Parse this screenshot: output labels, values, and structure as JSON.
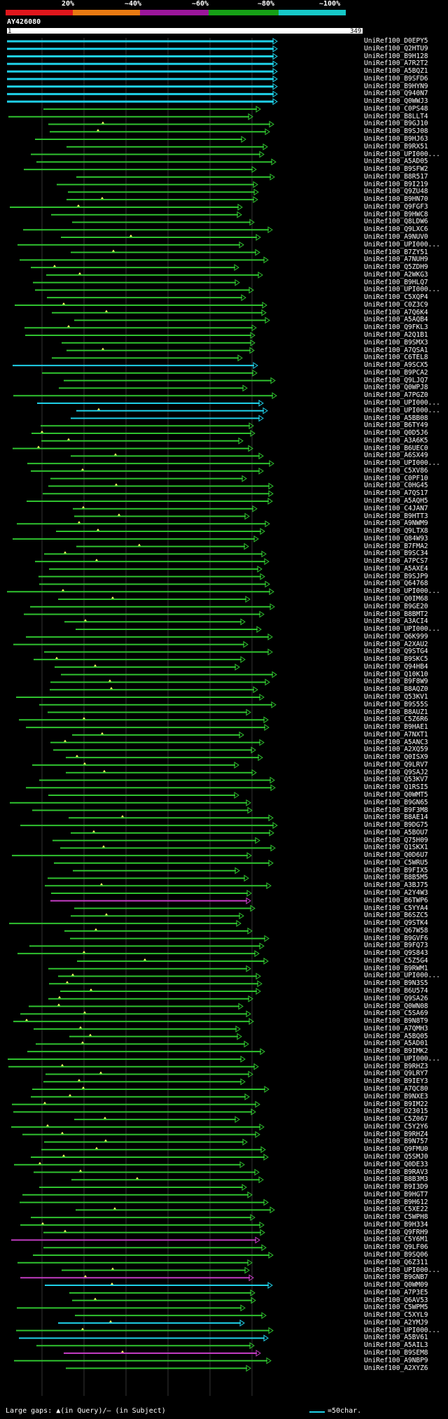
{
  "scale": {
    "labels": [
      "20%",
      "~40%",
      "~60%",
      "~80%",
      "~100%"
    ],
    "colors": [
      "#e0161c",
      "#e87a12",
      "#9b169b",
      "#16a016",
      "#16c8c8"
    ]
  },
  "query": {
    "id": "AY426080",
    "start": "1",
    "end": "349"
  },
  "footer": {
    "left": "Large gaps: ▲(in Query)/– (in Subject)",
    "right": "=50char."
  },
  "hits": [
    {
      "id": "UniRef100_D0EPY5",
      "color": "cyan"
    },
    {
      "id": "UniRef100_Q2HTU9",
      "color": "cyan"
    },
    {
      "id": "UniRef100_B9H128",
      "color": "cyan"
    },
    {
      "id": "UniRef100_A7R2T2",
      "color": "cyan"
    },
    {
      "id": "UniRef100_A5BQZ1",
      "color": "cyan"
    },
    {
      "id": "UniRef100_B9SFD6",
      "color": "cyan"
    },
    {
      "id": "UniRef100_B9HYN9",
      "color": "cyan"
    },
    {
      "id": "UniRef100_Q940N7",
      "color": "cyan"
    },
    {
      "id": "UniRef100_Q0WWJ3",
      "color": "cyan"
    },
    {
      "id": "UniRef100_C0PS48",
      "color": "green"
    },
    {
      "id": "UniRef100_B8LLT4",
      "color": "green"
    },
    {
      "id": "UniRef100_B9GJ10",
      "color": "green"
    },
    {
      "id": "UniRef100_B9SJ08",
      "color": "green"
    },
    {
      "id": "UniRef100_B9HJ63",
      "color": "green"
    },
    {
      "id": "UniRef100_B9RX51",
      "color": "green"
    },
    {
      "id": "UniRef100_UPI000...",
      "color": "green"
    },
    {
      "id": "UniRef100_A5AD05",
      "color": "green"
    },
    {
      "id": "UniRef100_B9SFW2",
      "color": "green"
    },
    {
      "id": "UniRef100_B8R517",
      "color": "green"
    },
    {
      "id": "UniRef100_B9I219",
      "color": "green"
    },
    {
      "id": "UniRef100_Q9ZU48",
      "color": "green"
    },
    {
      "id": "UniRef100_B9HN70",
      "color": "green"
    },
    {
      "id": "UniRef100_Q9FGF3",
      "color": "green"
    },
    {
      "id": "UniRef100_B9HWC8",
      "color": "green"
    },
    {
      "id": "UniRef100_Q8LDW6",
      "color": "green"
    },
    {
      "id": "UniRef100_Q9LXC6",
      "color": "green"
    },
    {
      "id": "UniRef100_A9NUV0",
      "color": "green"
    },
    {
      "id": "UniRef100_UPI000...",
      "color": "green"
    },
    {
      "id": "UniRef100_B7ZY51",
      "color": "green"
    },
    {
      "id": "UniRef100_A7NUH9",
      "color": "green"
    },
    {
      "id": "UniRef100_Q5ZDH9",
      "color": "green"
    },
    {
      "id": "UniRef100_A2WKG3",
      "color": "green"
    },
    {
      "id": "UniRef100_B9HLQ7",
      "color": "green"
    },
    {
      "id": "UniRef100_UPI000...",
      "color": "green"
    },
    {
      "id": "UniRef100_C5XQP4",
      "color": "green"
    },
    {
      "id": "UniRef100_C0Z3C9",
      "color": "green"
    },
    {
      "id": "UniRef100_A7Q6K4",
      "color": "green"
    },
    {
      "id": "UniRef100_A5AQB4",
      "color": "green"
    },
    {
      "id": "UniRef100_Q9FKL3",
      "color": "green"
    },
    {
      "id": "UniRef100_A2Q1B1",
      "color": "green"
    },
    {
      "id": "UniRef100_B9SMX3",
      "color": "green"
    },
    {
      "id": "UniRef100_A7QSA1",
      "color": "green"
    },
    {
      "id": "UniRef100_C6TEL8",
      "color": "green"
    },
    {
      "id": "UniRef100_A9SCX5",
      "color": "cyan"
    },
    {
      "id": "UniRef100_B9PCA2",
      "color": "green"
    },
    {
      "id": "UniRef100_Q9LJQ7",
      "color": "green"
    },
    {
      "id": "UniRef100_Q0WPJ8",
      "color": "green"
    },
    {
      "id": "UniRef100_A7PGZ0",
      "color": "green"
    },
    {
      "id": "UniRef100_UPI000...",
      "color": "cyan"
    },
    {
      "id": "UniRef100_UPI000...",
      "color": "cyan"
    },
    {
      "id": "UniRef100_A5BB08",
      "color": "cyan"
    },
    {
      "id": "UniRef100_B6TY49",
      "color": "green"
    },
    {
      "id": "UniRef100_Q0D5J6",
      "color": "green"
    },
    {
      "id": "UniRef100_A3A6K5",
      "color": "green"
    },
    {
      "id": "UniRef100_B6UEC0",
      "color": "green"
    },
    {
      "id": "UniRef100_A6SX49",
      "color": "green"
    },
    {
      "id": "UniRef100_UPI000...",
      "color": "green"
    },
    {
      "id": "UniRef100_C5XV86",
      "color": "green"
    },
    {
      "id": "UniRef100_C0PF10",
      "color": "green"
    },
    {
      "id": "UniRef100_C0HG45",
      "color": "green"
    },
    {
      "id": "UniRef100_A7QS17",
      "color": "green"
    },
    {
      "id": "UniRef100_A5AQH5",
      "color": "green"
    },
    {
      "id": "UniRef100_C4JAN7",
      "color": "green"
    },
    {
      "id": "UniRef100_B9HTT3",
      "color": "green"
    },
    {
      "id": "UniRef100_A9NWM9",
      "color": "green"
    },
    {
      "id": "UniRef100_Q9LTX8",
      "color": "green"
    },
    {
      "id": "UniRef100_Q84W93",
      "color": "green"
    },
    {
      "id": "UniRef100_B7FMA2",
      "color": "green"
    },
    {
      "id": "UniRef100_B9SC34",
      "color": "green"
    },
    {
      "id": "UniRef100_A7PCS7",
      "color": "green"
    },
    {
      "id": "UniRef100_A5AXE4",
      "color": "green"
    },
    {
      "id": "UniRef100_B9SJP9",
      "color": "green"
    },
    {
      "id": "UniRef100_Q64768",
      "color": "green"
    },
    {
      "id": "UniRef100_UPI000...",
      "color": "green"
    },
    {
      "id": "UniRef100_Q0IM68",
      "color": "green"
    },
    {
      "id": "UniRef100_B9GE20",
      "color": "green"
    },
    {
      "id": "UniRef100_B8BMT2",
      "color": "green"
    },
    {
      "id": "UniRef100_A3ACI4",
      "color": "green"
    },
    {
      "id": "UniRef100_UPI000...",
      "color": "green"
    },
    {
      "id": "UniRef100_Q6K999",
      "color": "green"
    },
    {
      "id": "UniRef100_A2XAU2",
      "color": "green"
    },
    {
      "id": "UniRef100_Q9STG4",
      "color": "green"
    },
    {
      "id": "UniRef100_B9SKC5",
      "color": "green"
    },
    {
      "id": "UniRef100_Q94HB4",
      "color": "green"
    },
    {
      "id": "UniRef100_Q10K10",
      "color": "green"
    },
    {
      "id": "UniRef100_B9F8W9",
      "color": "green"
    },
    {
      "id": "UniRef100_B8AQZ0",
      "color": "green"
    },
    {
      "id": "UniRef100_Q53KV1",
      "color": "green"
    },
    {
      "id": "UniRef100_B9S55S",
      "color": "green"
    },
    {
      "id": "UniRef100_B8AUZ1",
      "color": "green"
    },
    {
      "id": "UniRef100_C5Z6R6",
      "color": "green"
    },
    {
      "id": "UniRef100_B9HAE1",
      "color": "green"
    },
    {
      "id": "UniRef100_A7NXT1",
      "color": "green"
    },
    {
      "id": "UniRef100_A5ANC3",
      "color": "green"
    },
    {
      "id": "UniRef100_A2XQ59",
      "color": "green"
    },
    {
      "id": "UniRef100_Q0ISX9",
      "color": "green"
    },
    {
      "id": "UniRef100_Q9LRV7",
      "color": "green"
    },
    {
      "id": "UniRef100_Q9SAJ2",
      "color": "green"
    },
    {
      "id": "UniRef100_Q53KV7",
      "color": "green"
    },
    {
      "id": "UniRef100_Q1RSI5",
      "color": "green"
    },
    {
      "id": "UniRef100_Q0WMT5",
      "color": "green"
    },
    {
      "id": "UniRef100_B9GN65",
      "color": "green"
    },
    {
      "id": "UniRef100_B9F3M8",
      "color": "green"
    },
    {
      "id": "UniRef100_B8AE14",
      "color": "green"
    },
    {
      "id": "UniRef100_B9DG75",
      "color": "green"
    },
    {
      "id": "UniRef100_A5BOU7",
      "color": "green"
    },
    {
      "id": "UniRef100_Q75H09",
      "color": "green"
    },
    {
      "id": "UniRef100_Q1SKX1",
      "color": "green"
    },
    {
      "id": "UniRef100_Q0D6U7",
      "color": "green"
    },
    {
      "id": "UniRef100_C5WRU5",
      "color": "green"
    },
    {
      "id": "UniRef100_B9FIX5",
      "color": "green"
    },
    {
      "id": "UniRef100_B8B5M5",
      "color": "green"
    },
    {
      "id": "UniRef100_A3BJ75",
      "color": "green"
    },
    {
      "id": "UniRef100_A2Y4W3",
      "color": "green"
    },
    {
      "id": "UniRef100_B6TWP6",
      "color": "magenta"
    },
    {
      "id": "UniRef100_C5YYA4",
      "color": "green"
    },
    {
      "id": "UniRef100_B6SZC5",
      "color": "green"
    },
    {
      "id": "UniRef100_Q9STK4",
      "color": "green"
    },
    {
      "id": "UniRef100_Q67W58",
      "color": "green"
    },
    {
      "id": "UniRef100_B9GVF6",
      "color": "green"
    },
    {
      "id": "UniRef100_B9FQ73",
      "color": "green"
    },
    {
      "id": "UniRef100_Q9S843",
      "color": "green"
    },
    {
      "id": "UniRef100_C5Z5G4",
      "color": "green"
    },
    {
      "id": "UniRef100_B9RWM1",
      "color": "green"
    },
    {
      "id": "UniRef100_UPI000...",
      "color": "green"
    },
    {
      "id": "UniRef100_B9N3S5",
      "color": "green"
    },
    {
      "id": "UniRef100_B6U574",
      "color": "green"
    },
    {
      "id": "UniRef100_Q9SA26",
      "color": "green"
    },
    {
      "id": "UniRef100_Q0WN08",
      "color": "green"
    },
    {
      "id": "UniRef100_C5SA69",
      "color": "green"
    },
    {
      "id": "UniRef100_B9N8T9",
      "color": "green"
    },
    {
      "id": "UniRef100_A7QMH3",
      "color": "green"
    },
    {
      "id": "UniRef100_A5BQ05",
      "color": "green"
    },
    {
      "id": "UniRef100_A5AD01",
      "color": "green"
    },
    {
      "id": "UniRef100_B9IMK2",
      "color": "green"
    },
    {
      "id": "UniRef100_UPI000...",
      "color": "green"
    },
    {
      "id": "UniRef100_B9RHZ3",
      "color": "green"
    },
    {
      "id": "UniRef100_Q9LRY7",
      "color": "green"
    },
    {
      "id": "UniRef100_B9IEY3",
      "color": "green"
    },
    {
      "id": "UniRef100_A7QC80",
      "color": "green"
    },
    {
      "id": "UniRef100_B9NXE3",
      "color": "green"
    },
    {
      "id": "UniRef100_B9IM22",
      "color": "green"
    },
    {
      "id": "UniRef100_O23015",
      "color": "green"
    },
    {
      "id": "UniRef100_C5Z067",
      "color": "green"
    },
    {
      "id": "UniRef100_C5Y2Y6",
      "color": "green"
    },
    {
      "id": "UniRef100_B9RHZ4",
      "color": "green"
    },
    {
      "id": "UniRef100_B9N757",
      "color": "green"
    },
    {
      "id": "UniRef100_Q9FMU0",
      "color": "green"
    },
    {
      "id": "UniRef100_Q5SMJ0",
      "color": "green"
    },
    {
      "id": "UniRef100_Q0DE33",
      "color": "green"
    },
    {
      "id": "UniRef100_B9RAV3",
      "color": "green"
    },
    {
      "id": "UniRef100_B8B3M3",
      "color": "green"
    },
    {
      "id": "UniRef100_B9I3D9",
      "color": "green"
    },
    {
      "id": "UniRef100_B9HGT7",
      "color": "green"
    },
    {
      "id": "UniRef100_B9H612",
      "color": "green"
    },
    {
      "id": "UniRef100_C5XE22",
      "color": "green"
    },
    {
      "id": "UniRef100_C5WPH8",
      "color": "green"
    },
    {
      "id": "UniRef100_B9H334",
      "color": "green"
    },
    {
      "id": "UniRef100_Q9FRH9",
      "color": "green"
    },
    {
      "id": "UniRef100_C5Y6M1",
      "color": "magenta"
    },
    {
      "id": "UniRef100_Q9LF06",
      "color": "green"
    },
    {
      "id": "UniRef100_B9SQ06",
      "color": "green"
    },
    {
      "id": "UniRef100_Q6Z311",
      "color": "green"
    },
    {
      "id": "UniRef100_UPI000...",
      "color": "green"
    },
    {
      "id": "UniRef100_B9GNB7",
      "color": "magenta"
    },
    {
      "id": "UniRef100_Q0WM09",
      "color": "cyan"
    },
    {
      "id": "UniRef100_A7P3E5",
      "color": "green"
    },
    {
      "id": "UniRef100_Q6AV53",
      "color": "green"
    },
    {
      "id": "UniRef100_C5WPM5",
      "color": "green"
    },
    {
      "id": "UniRef100_C5XYL9",
      "color": "green"
    },
    {
      "id": "UniRef100_A2YMJ9",
      "color": "cyan"
    },
    {
      "id": "UniRef100_UPI000...",
      "color": "green"
    },
    {
      "id": "UniRef100_A5BV61",
      "color": "cyan"
    },
    {
      "id": "UniRef100_A5AIL3",
      "color": "green"
    },
    {
      "id": "UniRef100_B9SEM8",
      "color": "magenta"
    },
    {
      "id": "UniRef100_A9NBP9",
      "color": "green"
    },
    {
      "id": "UniRef100_A2XYZ6",
      "color": "green"
    }
  ]
}
